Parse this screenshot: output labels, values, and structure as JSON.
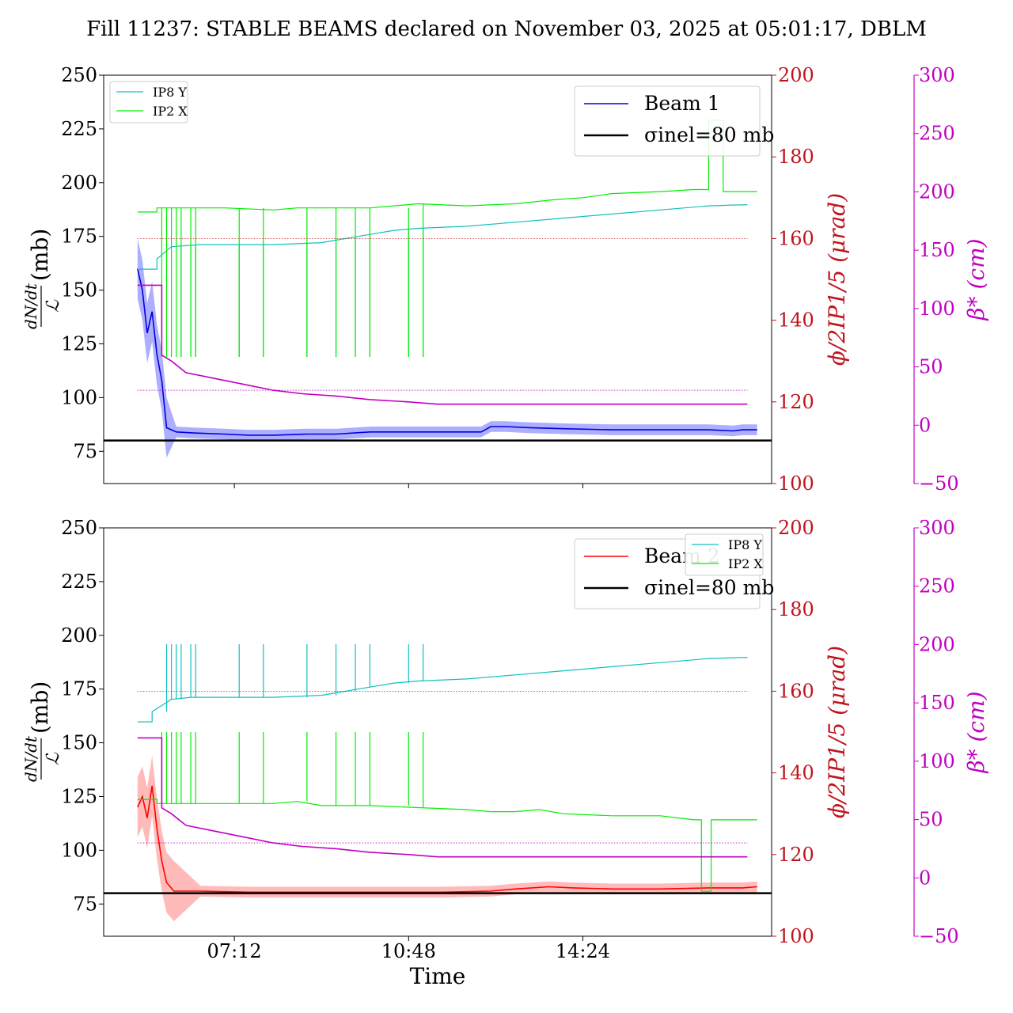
{
  "title": "Fill 11237: STABLE BEAMS declared on November 03, 2025 at 05:01:17, DBLM",
  "colors": {
    "beam1": "#0000dd",
    "beam1_band": "#8c8cff",
    "beam2": "#ff0000",
    "beam2_band": "#ff9c9c",
    "ip8": "#10c0c0",
    "ip2": "#00ee00",
    "crossing_axis": "#c0141c",
    "beta_axis": "#c000c0",
    "sigma": "#000000"
  },
  "chart_data": [
    {
      "type": "line",
      "panel": "top",
      "ylabel": "dN/dt / ℒ (mb)",
      "ylabel_right": "ϕ/2IP1/5 (μrad)",
      "ylabel_right2": "β* (cm)",
      "xlabel": "",
      "ylim": [
        60,
        250
      ],
      "ylim_right": [
        100,
        200
      ],
      "ylim_right2": [
        -50,
        300
      ],
      "yticks": [
        "75",
        "100",
        "125",
        "150",
        "175",
        "200",
        "225",
        "250"
      ],
      "yticks_right": [
        "100",
        "120",
        "140",
        "160",
        "180",
        "200"
      ],
      "yticks_right2": [
        "−50",
        "0",
        "50",
        "100",
        "150",
        "200",
        "250",
        "300"
      ],
      "xlim_hours": [
        4.5,
        18.3
      ],
      "xticks_hours": [
        7.2,
        10.8,
        14.4
      ],
      "legend_main": [
        "Beam 1",
        "σinel=80 mb"
      ],
      "legend_main_placement": "upper right",
      "legend_small": [
        "IP8 Y",
        "IP2 X"
      ],
      "legend_small_placement": "upper left",
      "series": [
        {
          "name": "Beam 1",
          "axis": "left",
          "role": "main",
          "x": [
            5.2,
            5.3,
            5.4,
            5.5,
            5.6,
            5.7,
            5.8,
            6.0,
            6.4,
            7.0,
            7.5,
            8.0,
            8.7,
            9.3,
            10.0,
            10.5,
            11.0,
            11.5,
            12.0,
            12.3,
            12.5,
            12.8,
            13.3,
            14.0,
            15.0,
            16.0,
            17.0,
            17.5,
            17.7,
            18.0
          ],
          "y": [
            160,
            150,
            130,
            140,
            120,
            108,
            86,
            84,
            83.5,
            83,
            82.5,
            82.5,
            83,
            83,
            84,
            84,
            84,
            84,
            84,
            84,
            86.5,
            86.5,
            86,
            85.5,
            85,
            85,
            85,
            84.5,
            85,
            85
          ]
        },
        {
          "name": "σinel=80 mb",
          "axis": "left",
          "role": "reference",
          "x": [
            4.5,
            18.3
          ],
          "y": [
            80,
            80
          ]
        },
        {
          "name": "IP8 Y",
          "axis": "right1",
          "x": [
            5.2,
            5.6,
            5.6,
            5.9,
            6.5,
            7.0,
            8.0,
            9.0,
            9.5,
            10.0,
            10.5,
            11.0,
            12.0,
            13.0,
            14.0,
            15.0,
            16.0,
            17.0,
            17.5,
            17.8
          ],
          "y": [
            152.5,
            152.5,
            155,
            158,
            158.5,
            158.5,
            158.5,
            159,
            160,
            161,
            162,
            162.5,
            163,
            164,
            165,
            166,
            167,
            168,
            168.2,
            168.3
          ],
          "spikes": {
            "x": [
              6.1,
              6.3,
              6.4,
              7.3,
              7.8,
              8.7,
              9.3,
              9.7,
              10.0,
              10.8,
              11.1
            ],
            "y": [
              131,
              131,
              131,
              131,
              131,
              131,
              131,
              131,
              131,
              131,
              131
            ]
          }
        },
        {
          "name": "IP2 X",
          "axis": "right1",
          "x": [
            5.2,
            5.6,
            5.6,
            6.0,
            7.0,
            8.0,
            8.5,
            9.0,
            10.0,
            11.0,
            12.0,
            13.0,
            13.8,
            14.4,
            15.0,
            16.0,
            16.7,
            17.0,
            17.0,
            17.3,
            17.3,
            18.0
          ],
          "y": [
            166.5,
            166.5,
            167.5,
            167.5,
            167.5,
            167,
            167.5,
            167.5,
            167.5,
            168.5,
            168,
            168.5,
            169.5,
            170,
            171,
            171.5,
            172,
            172,
            189,
            189,
            171.5,
            171.5
          ],
          "spikes": {
            "x": [
              5.7,
              5.8,
              5.9,
              6.0,
              6.1,
              6.3,
              6.4,
              7.3,
              7.8,
              8.7,
              9.3,
              9.7,
              10.0,
              10.8,
              11.1
            ],
            "y": [
              131,
              131,
              131,
              131,
              131,
              131,
              131,
              131,
              131,
              131,
              131,
              131,
              131,
              131,
              131
            ]
          }
        },
        {
          "name": "β*",
          "axis": "right2",
          "x": [
            5.2,
            5.7,
            5.7,
            5.9,
            6.2,
            6.8,
            7.4,
            8.0,
            8.6,
            9.3,
            10.0,
            10.8,
            11.4,
            12.0,
            13.0,
            14.0,
            15.0,
            16.0,
            17.0,
            17.7,
            17.8
          ],
          "y": [
            120,
            120,
            60,
            55,
            45,
            40,
            35,
            30,
            27,
            25,
            22,
            20,
            18,
            18,
            18,
            18,
            18,
            18,
            18,
            18,
            18
          ]
        },
        {
          "name": "φ/2 ref",
          "axis": "right1",
          "role": "hline",
          "x": [
            5.2,
            17.8
          ],
          "y": [
            160,
            160
          ]
        },
        {
          "name": "β* ref",
          "axis": "right2",
          "role": "hline",
          "x": [
            5.2,
            17.8
          ],
          "y": [
            30,
            30
          ]
        }
      ]
    },
    {
      "type": "line",
      "panel": "bottom",
      "ylabel": "dN/dt / ℒ (mb)",
      "ylabel_right": "ϕ/2IP1/5 (μrad)",
      "ylabel_right2": "β* (cm)",
      "xlabel": "Time",
      "ylim": [
        60,
        250
      ],
      "ylim_right": [
        100,
        200
      ],
      "ylim_right2": [
        -50,
        300
      ],
      "yticks": [
        "75",
        "100",
        "125",
        "150",
        "175",
        "200",
        "225",
        "250"
      ],
      "yticks_right": [
        "100",
        "120",
        "140",
        "160",
        "180",
        "200"
      ],
      "yticks_right2": [
        "−50",
        "0",
        "50",
        "100",
        "150",
        "200",
        "250",
        "300"
      ],
      "xlim_hours": [
        4.5,
        18.3
      ],
      "xticks_hours": [
        7.2,
        10.8,
        14.4
      ],
      "xticklabels": [
        "07:12",
        "10:48",
        "14:24"
      ],
      "legend_main": [
        "Beam 2",
        "σinel=80 mb"
      ],
      "legend_main_placement": "upper right",
      "legend_small": [
        "IP8 Y",
        "IP2 X"
      ],
      "legend_small_placement": "upper right",
      "series": [
        {
          "name": "Beam 2",
          "axis": "left",
          "role": "main",
          "x": [
            5.2,
            5.3,
            5.4,
            5.5,
            5.6,
            5.7,
            5.8,
            5.95,
            6.5,
            7.5,
            8.5,
            9.5,
            10.5,
            11.5,
            12.5,
            13.0,
            13.7,
            14.2,
            15.0,
            16.0,
            17.0,
            17.7,
            18.0
          ],
          "y": [
            120,
            125,
            115,
            130,
            110,
            95,
            85,
            81,
            81,
            80.5,
            80.5,
            80.5,
            80.5,
            80.5,
            81,
            82,
            83,
            82.5,
            82,
            82,
            82.5,
            82.5,
            83
          ]
        },
        {
          "name": "σinel=80 mb",
          "axis": "left",
          "role": "reference",
          "x": [
            4.5,
            18.3
          ],
          "y": [
            80,
            80
          ]
        },
        {
          "name": "IP8 Y",
          "axis": "right1",
          "x": [
            5.2,
            5.5,
            5.5,
            5.9,
            6.3,
            7.0,
            8.0,
            9.0,
            9.5,
            10.0,
            10.5,
            11.0,
            12.0,
            13.0,
            14.0,
            15.0,
            16.0,
            17.0,
            17.5,
            17.8
          ],
          "y": [
            152.5,
            152.5,
            155,
            158,
            158.5,
            158.5,
            158.5,
            159,
            160,
            161,
            162,
            162.5,
            163,
            164,
            165,
            166,
            167,
            168,
            168.2,
            168.3
          ],
          "spikes": {
            "x": [
              5.8,
              5.9,
              6.0,
              6.1,
              6.3,
              6.4,
              7.3,
              7.8,
              8.7,
              9.3,
              9.7,
              10.0,
              10.8,
              11.1
            ],
            "y": [
              171.5,
              171.5,
              171.5,
              171.5,
              171.5,
              171.5,
              171.5,
              171.5,
              171.5,
              171.5,
              171.5,
              171.5,
              171.5,
              171.5
            ]
          }
        },
        {
          "name": "IP2 X",
          "axis": "right1",
          "x": [
            5.2,
            5.6,
            5.6,
            6.0,
            7.0,
            8.0,
            8.5,
            9.0,
            10.0,
            11.0,
            12.0,
            12.5,
            13.0,
            13.5,
            14.0,
            15.0,
            16.0,
            16.7,
            16.85,
            16.85,
            17.05,
            17.05,
            18.0
          ],
          "y": [
            133.5,
            133.5,
            132.5,
            132.5,
            132.5,
            132.5,
            133,
            132,
            132,
            131.5,
            131,
            130.5,
            130.5,
            131,
            130,
            129.5,
            129.5,
            128.5,
            128.5,
            111,
            111,
            128.5,
            128.5
          ],
          "spikes": {
            "x": [
              5.7,
              5.8,
              5.9,
              6.0,
              6.1,
              6.3,
              6.4,
              7.3,
              7.8,
              8.7,
              9.3,
              9.7,
              10.0,
              10.8,
              11.1
            ],
            "y": [
              150,
              150,
              150,
              150,
              150,
              150,
              150,
              150,
              150,
              150,
              150,
              150,
              150,
              150,
              150
            ]
          }
        },
        {
          "name": "β*",
          "axis": "right2",
          "x": [
            5.2,
            5.7,
            5.7,
            5.9,
            6.2,
            6.8,
            7.4,
            8.0,
            8.6,
            9.3,
            10.0,
            10.8,
            11.4,
            12.0,
            13.0,
            14.0,
            15.0,
            16.0,
            17.0,
            17.7,
            17.8
          ],
          "y": [
            120,
            120,
            60,
            55,
            45,
            40,
            35,
            30,
            27,
            25,
            22,
            20,
            18,
            18,
            18,
            18,
            18,
            18,
            18,
            18,
            18
          ]
        },
        {
          "name": "φ/2 ref",
          "axis": "right1",
          "role": "hline",
          "x": [
            5.2,
            17.8
          ],
          "y": [
            160,
            160
          ]
        },
        {
          "name": "β* ref",
          "axis": "right2",
          "role": "hline",
          "x": [
            5.2,
            17.8
          ],
          "y": [
            30,
            30
          ]
        }
      ]
    }
  ]
}
